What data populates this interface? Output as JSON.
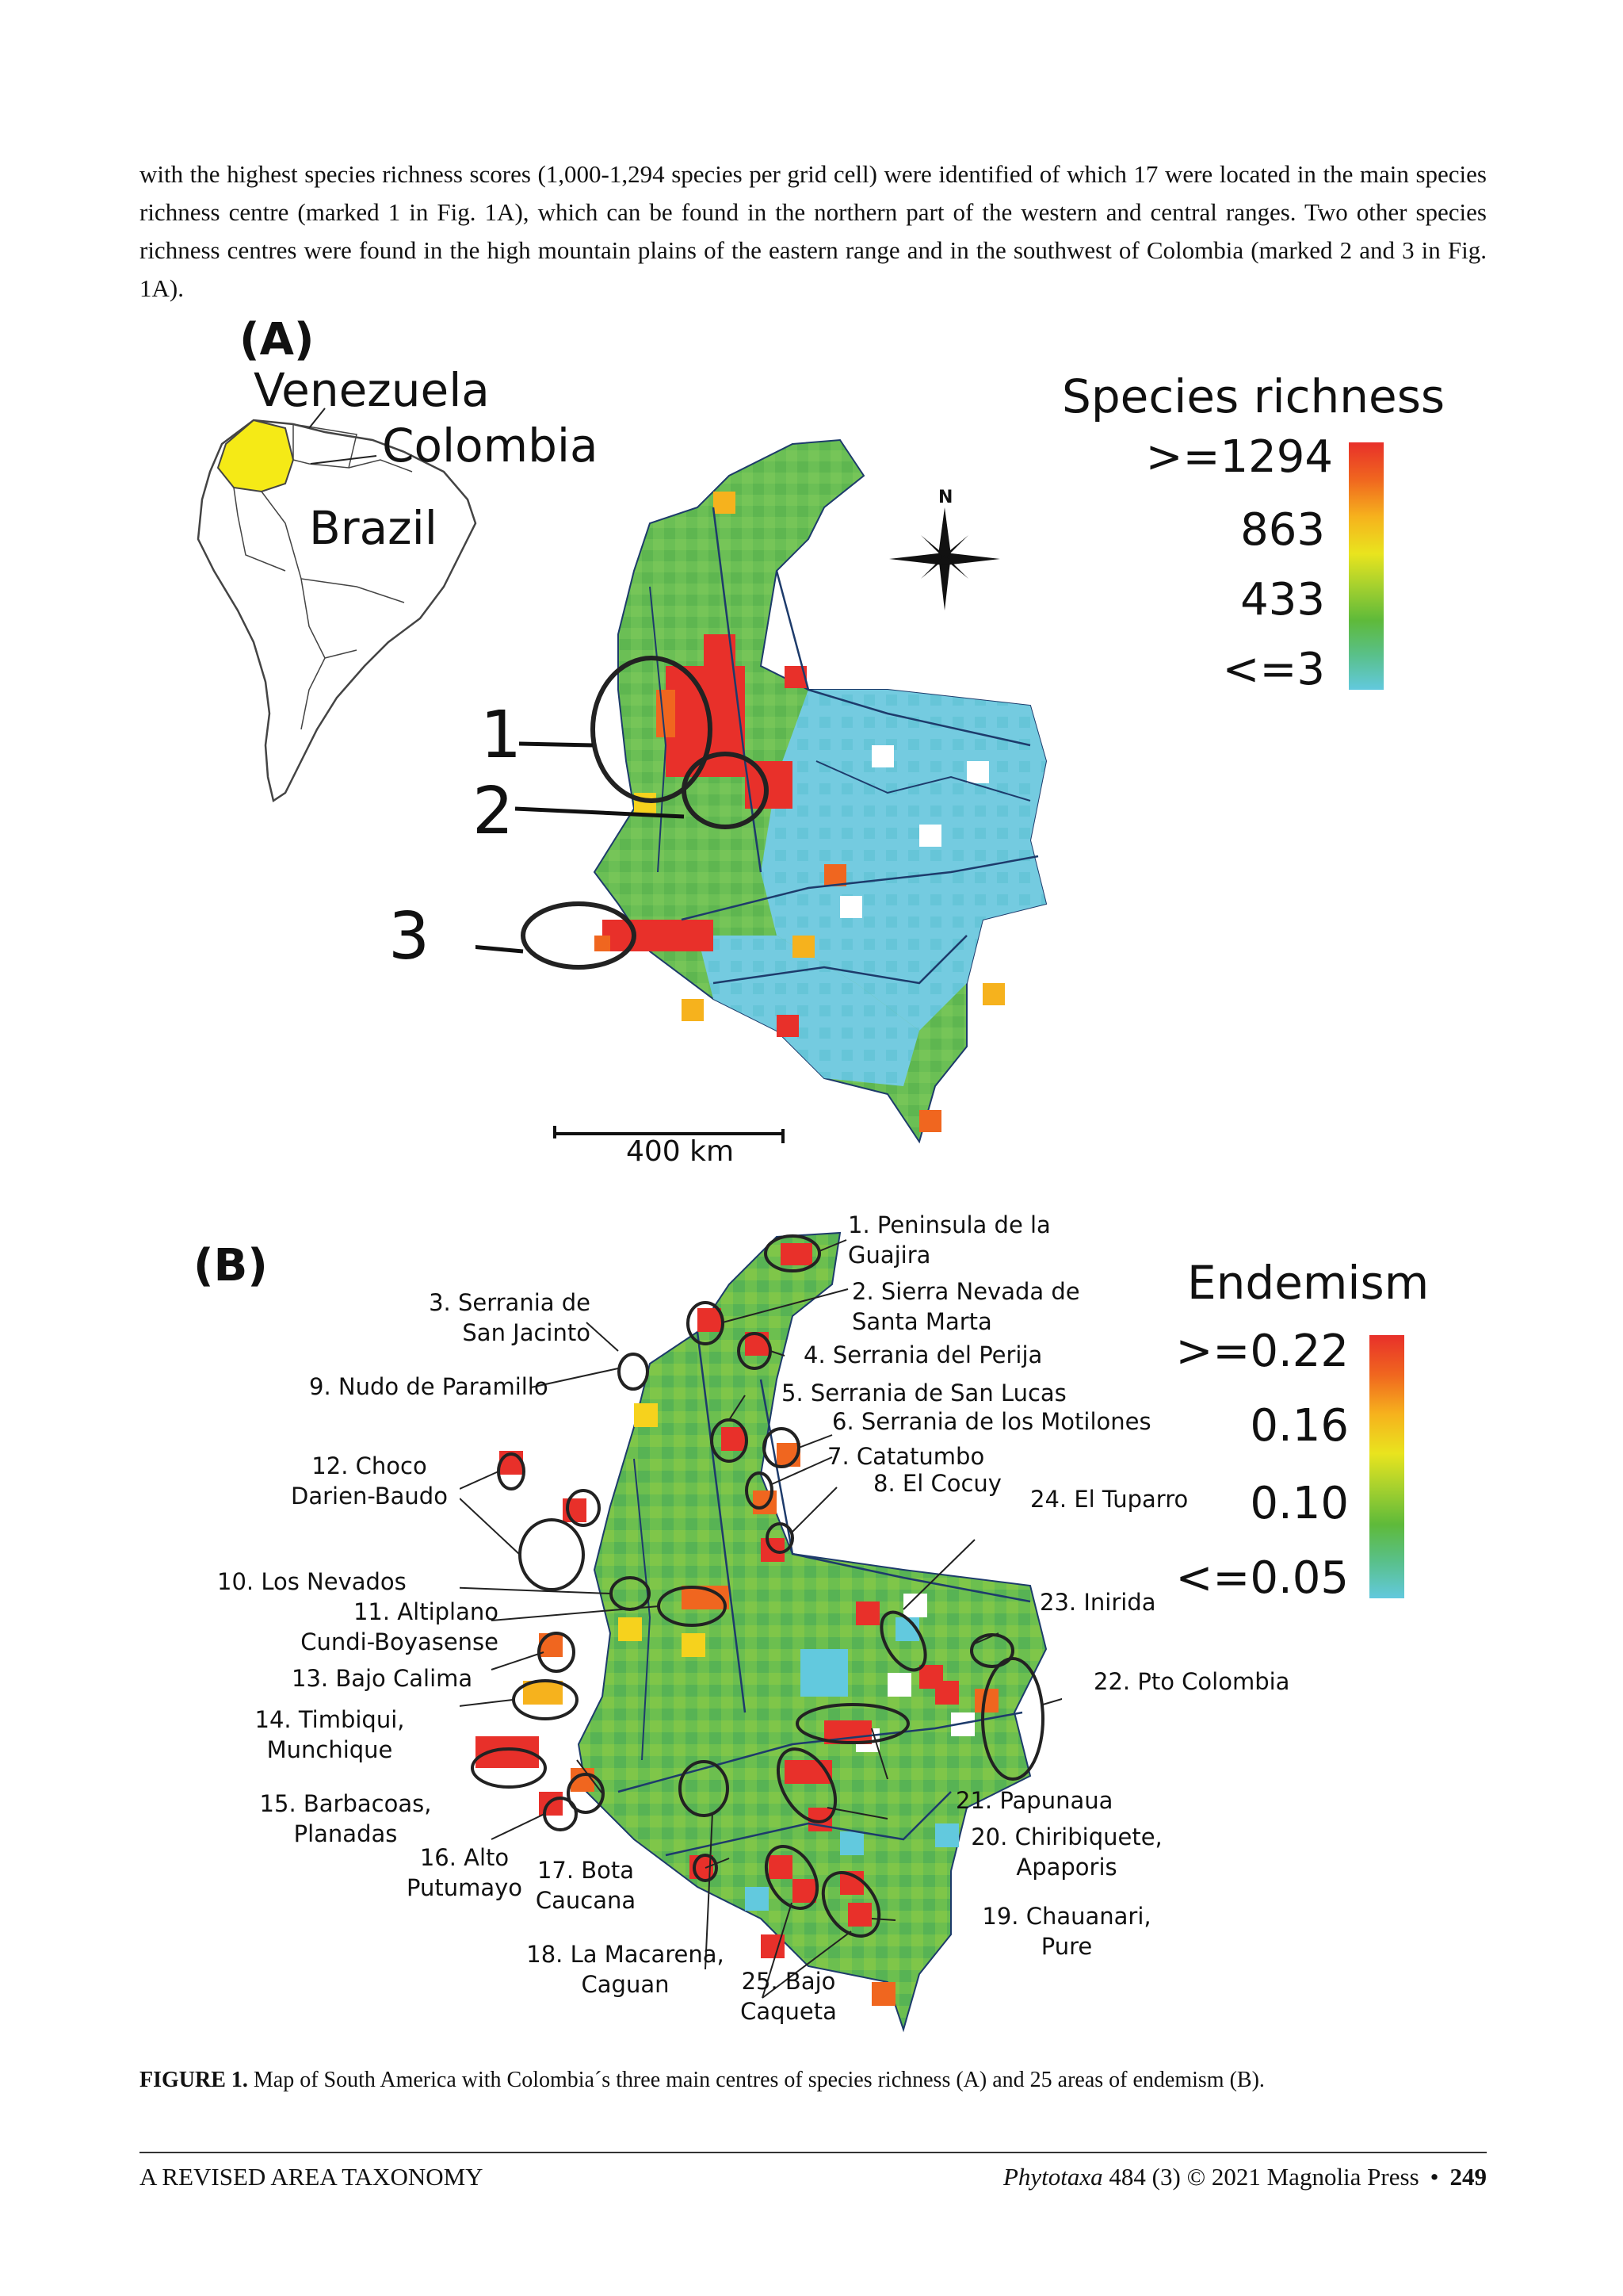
{
  "body_text": "with the highest species richness scores (1,000-1,294 species per grid cell) were identified of which 17 were located in the main species richness centre (marked 1 in Fig. 1A), which can be found in the northern part of the western and central ranges. Two other species richness centres were found in the high mountain plains of the eastern range and in the southwest of Colombia (marked 2 and 3 in Fig. 1A).",
  "panel_a": {
    "label": "(A)",
    "inset_labels": {
      "venezuela": "Venezuela",
      "colombia": "Colombia",
      "brazil": "Brazil"
    },
    "centres": [
      "1",
      "2",
      "3"
    ],
    "compass": "N",
    "scale_bar": "400 km",
    "legend": {
      "title": "Species richness",
      "ticks": [
        ">=1294",
        "863",
        "433",
        "<=3"
      ]
    }
  },
  "panel_b": {
    "label": "(B)",
    "legend": {
      "title": "Endemism",
      "ticks": [
        ">=0.22",
        "0.16",
        "0.10",
        "<=0.05"
      ]
    },
    "areas": {
      "a1": "1. Peninsula de la\nGuajira",
      "a2": "2. Sierra Nevada de\nSanta Marta",
      "a3": "3. Serrania de\nSan Jacinto",
      "a4": "4. Serrania del Perija",
      "a5": "5. Serrania de San Lucas",
      "a6": "6. Serrania de los Motilones",
      "a7": "7. Catatumbo",
      "a8": "8. El Cocuy",
      "a9": "9. Nudo de Paramillo",
      "a10": "10. Los Nevados",
      "a11": "11. Altiplano\nCundi-Boyasense",
      "a12": "12. Choco\nDarien-Baudo",
      "a13": "13. Bajo Calima",
      "a14": "14. Timbiqui,\nMunchique",
      "a15": "15. Barbacoas,\nPlanadas",
      "a16": "16. Alto\nPutumayo",
      "a17": "17. Bota\nCaucana",
      "a18": "18. La Macarena,\nCaguan",
      "a19": "19. Chauanari,\nPure",
      "a20": "20. Chiribiquete,\nApaporis",
      "a21": "21. Papunaua",
      "a22": "22. Pto Colombia",
      "a23": "23. Inirida",
      "a24": "24. El Tuparro",
      "a25": "25. Bajo\nCaqueta"
    }
  },
  "caption": {
    "label": "FIGURE 1.",
    "text": " Map of South America with Colombia´s three main centres of species richness (A) and 25 areas of endemism (B)."
  },
  "footer": {
    "left": "A REVISED AREA TAXONOMY",
    "journal": "Phytotaxa",
    "citation": " 484 (3) © 2021 Magnolia Press",
    "bullet": "•",
    "page": "249"
  },
  "colors": {
    "high": "#e8302a",
    "mid_high": "#f0a21e",
    "mid": "#e9e41e",
    "mid_low": "#5eba3a",
    "low": "#62c9de",
    "inset_colombia": "#f5ea16"
  }
}
